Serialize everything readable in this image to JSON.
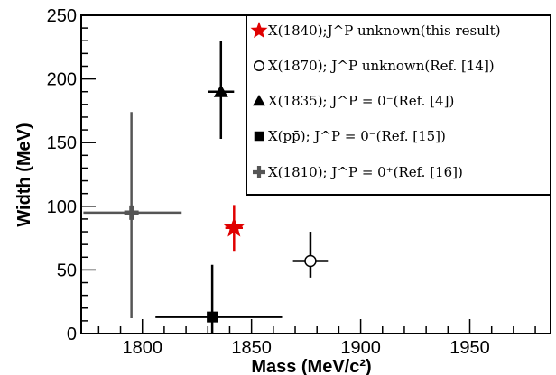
{
  "chart_data": {
    "type": "scatter",
    "xlabel": "Mass (MeV/c²)",
    "ylabel": "Width (MeV)",
    "xlim": [
      1772,
      1987
    ],
    "ylim": [
      0,
      250
    ],
    "x_ticks": [
      1800,
      1850,
      1900,
      1950
    ],
    "y_ticks": [
      0,
      50,
      100,
      150,
      200,
      250
    ],
    "grid": false,
    "legend_position": "top-right",
    "series": [
      {
        "name": "X(1840);J^P unknown(this result)",
        "marker": "star",
        "color": "#e00000",
        "x": 1842,
        "y": 83,
        "xerr": [
          4,
          4
        ],
        "yerr": [
          18,
          18
        ]
      },
      {
        "name": "X(1870); J^P unknown(Ref. [14])",
        "marker": "open-circle",
        "color": "#000000",
        "x": 1877,
        "y": 57,
        "xerr": [
          8,
          8
        ],
        "yerr": [
          13,
          23
        ]
      },
      {
        "name": "X(1835); J^P = 0⁻(Ref. [4])",
        "marker": "triangle",
        "color": "#000000",
        "x": 1836,
        "y": 190,
        "xerr": [
          6,
          6
        ],
        "yerr": [
          37,
          40
        ]
      },
      {
        "name": "X(pp̄); J^P = 0⁻(Ref. [15])",
        "marker": "square",
        "color": "#000000",
        "x": 1832,
        "y": 13,
        "xerr": [
          26,
          32
        ],
        "yerr": [
          13,
          41
        ]
      },
      {
        "name": "X(1810); J^P = 0⁺(Ref. [16])",
        "marker": "cross",
        "color": "#555555",
        "x": 1795,
        "y": 95,
        "xerr": [
          22,
          23
        ],
        "yerr": [
          83,
          79
        ]
      }
    ]
  }
}
